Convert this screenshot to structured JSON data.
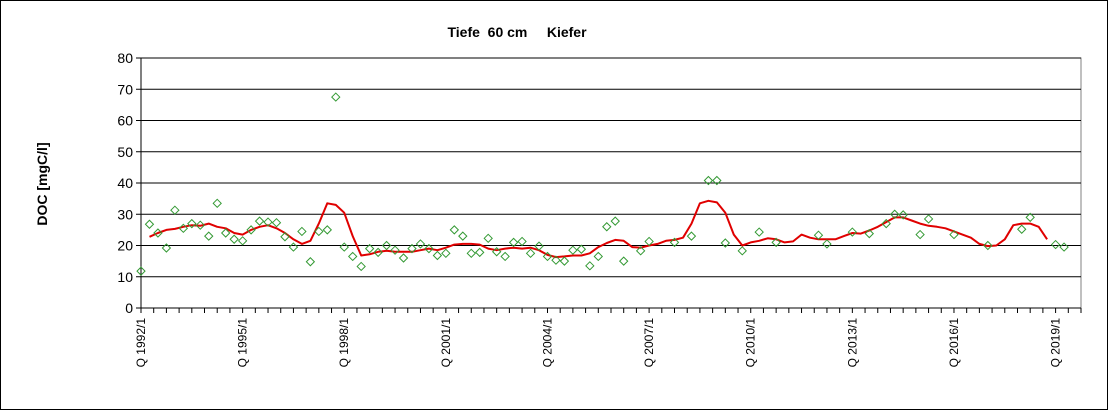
{
  "chart_data": {
    "type": "scatter",
    "title": "Tiefe  60 cm     Kiefer",
    "ylabel": "DOC [mgC/l]",
    "xlabel": "",
    "ylim": [
      0,
      80
    ],
    "yticks": [
      0,
      10,
      20,
      30,
      40,
      50,
      60,
      70,
      80
    ],
    "xlim": [
      1992.0,
      2019.75
    ],
    "xtick_labels": [
      {
        "x": 1992.0,
        "label": "Q 1992/1"
      },
      {
        "x": 1995.0,
        "label": "Q 1995/1"
      },
      {
        "x": 1998.0,
        "label": "Q 1998/1"
      },
      {
        "x": 2001.0,
        "label": "Q 2001/1"
      },
      {
        "x": 2004.0,
        "label": "Q 2004/1"
      },
      {
        "x": 2007.0,
        "label": "Q 2007/1"
      },
      {
        "x": 2010.0,
        "label": "Q 2010/1"
      },
      {
        "x": 2013.0,
        "label": "Q 2013/1"
      },
      {
        "x": 2016.0,
        "label": "Q 2016/1"
      },
      {
        "x": 2019.0,
        "label": "Q 2019/1"
      }
    ],
    "grid": "horizontal",
    "colors": {
      "points": "#339933",
      "line": "#e00000",
      "plot_bg": "#ffffff",
      "grid": "#000000"
    },
    "series": [
      {
        "kind": "scatter",
        "marker": "diamond",
        "points": [
          [
            1992.0,
            11.8
          ],
          [
            1992.25,
            26.8
          ],
          [
            1992.5,
            24.0
          ],
          [
            1992.75,
            19.2
          ],
          [
            1993.0,
            31.3
          ],
          [
            1993.25,
            25.5
          ],
          [
            1993.5,
            27.0
          ],
          [
            1993.75,
            26.5
          ],
          [
            1994.0,
            23.0
          ],
          [
            1994.25,
            33.5
          ],
          [
            1994.5,
            24.0
          ],
          [
            1994.75,
            22.0
          ],
          [
            1995.0,
            21.5
          ],
          [
            1995.25,
            25.0
          ],
          [
            1995.5,
            27.8
          ],
          [
            1995.75,
            27.5
          ],
          [
            1996.0,
            27.3
          ],
          [
            1996.25,
            22.8
          ],
          [
            1996.5,
            19.5
          ],
          [
            1996.75,
            24.5
          ],
          [
            1997.0,
            14.8
          ],
          [
            1997.25,
            24.5
          ],
          [
            1997.5,
            25.0
          ],
          [
            1997.75,
            67.5
          ],
          [
            1998.0,
            19.5
          ],
          [
            1998.25,
            16.5
          ],
          [
            1998.5,
            13.3
          ],
          [
            1998.75,
            19.0
          ],
          [
            1999.0,
            17.8
          ],
          [
            1999.25,
            20.0
          ],
          [
            1999.5,
            18.5
          ],
          [
            1999.75,
            16.0
          ],
          [
            2000.0,
            19.0
          ],
          [
            2000.25,
            20.5
          ],
          [
            2000.5,
            19.0
          ],
          [
            2000.75,
            16.8
          ],
          [
            2001.0,
            17.5
          ],
          [
            2001.25,
            25.0
          ],
          [
            2001.5,
            23.0
          ],
          [
            2001.75,
            17.5
          ],
          [
            2002.0,
            17.8
          ],
          [
            2002.25,
            22.3
          ],
          [
            2002.5,
            18.0
          ],
          [
            2002.75,
            16.5
          ],
          [
            2003.0,
            21.0
          ],
          [
            2003.25,
            21.3
          ],
          [
            2003.5,
            17.5
          ],
          [
            2003.75,
            19.8
          ],
          [
            2004.0,
            16.5
          ],
          [
            2004.25,
            15.3
          ],
          [
            2004.5,
            15.0
          ],
          [
            2004.75,
            18.5
          ],
          [
            2005.0,
            18.8
          ],
          [
            2005.25,
            13.5
          ],
          [
            2005.5,
            16.5
          ],
          [
            2005.75,
            26.0
          ],
          [
            2006.0,
            27.8
          ],
          [
            2006.25,
            15.0
          ],
          [
            2006.75,
            18.3
          ],
          [
            2007.0,
            21.3
          ],
          [
            2007.75,
            21.0
          ],
          [
            2008.25,
            23.0
          ],
          [
            2008.75,
            40.8
          ],
          [
            2009.0,
            40.8
          ],
          [
            2009.25,
            20.8
          ],
          [
            2009.75,
            18.3
          ],
          [
            2010.25,
            24.3
          ],
          [
            2010.75,
            21.0
          ],
          [
            2012.0,
            23.3
          ],
          [
            2012.25,
            20.5
          ],
          [
            2013.0,
            24.3
          ],
          [
            2013.5,
            23.8
          ],
          [
            2014.0,
            27.0
          ],
          [
            2014.25,
            30.0
          ],
          [
            2014.5,
            29.8
          ],
          [
            2015.0,
            23.5
          ],
          [
            2015.25,
            28.5
          ],
          [
            2016.0,
            23.5
          ],
          [
            2017.0,
            20.0
          ],
          [
            2018.0,
            25.2
          ],
          [
            2018.25,
            29.0
          ],
          [
            2019.0,
            20.3
          ],
          [
            2019.25,
            19.5
          ]
        ]
      },
      {
        "kind": "line",
        "points": [
          [
            1992.25,
            22.8
          ],
          [
            1992.5,
            24.0
          ],
          [
            1992.75,
            25.0
          ],
          [
            1993.0,
            25.3
          ],
          [
            1993.25,
            26.0
          ],
          [
            1993.5,
            26.5
          ],
          [
            1993.75,
            26.3
          ],
          [
            1994.0,
            27.0
          ],
          [
            1994.25,
            26.0
          ],
          [
            1994.5,
            25.5
          ],
          [
            1994.75,
            24.0
          ],
          [
            1995.0,
            23.5
          ],
          [
            1995.25,
            25.0
          ],
          [
            1995.5,
            26.0
          ],
          [
            1995.75,
            26.5
          ],
          [
            1996.0,
            25.5
          ],
          [
            1996.25,
            24.0
          ],
          [
            1996.5,
            22.0
          ],
          [
            1996.75,
            20.5
          ],
          [
            1997.0,
            21.5
          ],
          [
            1997.25,
            27.0
          ],
          [
            1997.5,
            33.5
          ],
          [
            1997.75,
            33.0
          ],
          [
            1998.0,
            30.5
          ],
          [
            1998.25,
            23.0
          ],
          [
            1998.5,
            16.8
          ],
          [
            1998.75,
            17.2
          ],
          [
            1999.0,
            18.0
          ],
          [
            1999.25,
            18.3
          ],
          [
            1999.5,
            18.0
          ],
          [
            1999.75,
            18.0
          ],
          [
            2000.0,
            18.0
          ],
          [
            2000.25,
            18.5
          ],
          [
            2000.5,
            19.0
          ],
          [
            2000.75,
            18.5
          ],
          [
            2001.0,
            19.3
          ],
          [
            2001.25,
            20.3
          ],
          [
            2001.5,
            20.5
          ],
          [
            2001.75,
            20.5
          ],
          [
            2002.0,
            20.3
          ],
          [
            2002.25,
            19.0
          ],
          [
            2002.5,
            18.5
          ],
          [
            2002.75,
            19.0
          ],
          [
            2003.0,
            19.3
          ],
          [
            2003.25,
            19.0
          ],
          [
            2003.5,
            19.3
          ],
          [
            2003.75,
            18.5
          ],
          [
            2004.0,
            17.0
          ],
          [
            2004.25,
            16.3
          ],
          [
            2004.5,
            16.5
          ],
          [
            2004.75,
            16.8
          ],
          [
            2005.0,
            16.8
          ],
          [
            2005.25,
            17.5
          ],
          [
            2005.5,
            19.5
          ],
          [
            2005.75,
            20.8
          ],
          [
            2006.0,
            21.8
          ],
          [
            2006.25,
            21.5
          ],
          [
            2006.5,
            19.5
          ],
          [
            2006.75,
            19.3
          ],
          [
            2007.0,
            20.0
          ],
          [
            2007.25,
            20.5
          ],
          [
            2007.5,
            21.5
          ],
          [
            2007.75,
            21.8
          ],
          [
            2008.0,
            22.5
          ],
          [
            2008.25,
            27.0
          ],
          [
            2008.5,
            33.5
          ],
          [
            2008.75,
            34.3
          ],
          [
            2009.0,
            33.8
          ],
          [
            2009.25,
            30.5
          ],
          [
            2009.5,
            23.5
          ],
          [
            2009.75,
            20.0
          ],
          [
            2010.0,
            21.0
          ],
          [
            2010.25,
            21.5
          ],
          [
            2010.5,
            22.3
          ],
          [
            2010.75,
            22.0
          ],
          [
            2011.0,
            21.0
          ],
          [
            2011.25,
            21.3
          ],
          [
            2011.5,
            23.5
          ],
          [
            2011.75,
            22.5
          ],
          [
            2012.0,
            22.0
          ],
          [
            2012.25,
            22.0
          ],
          [
            2012.5,
            22.0
          ],
          [
            2012.75,
            23.0
          ],
          [
            2013.0,
            24.0
          ],
          [
            2013.25,
            23.8
          ],
          [
            2013.5,
            24.8
          ],
          [
            2013.75,
            26.0
          ],
          [
            2014.0,
            27.5
          ],
          [
            2014.25,
            29.0
          ],
          [
            2014.5,
            29.0
          ],
          [
            2014.75,
            28.0
          ],
          [
            2015.0,
            27.0
          ],
          [
            2015.25,
            26.3
          ],
          [
            2015.5,
            26.0
          ],
          [
            2015.75,
            25.5
          ],
          [
            2016.0,
            24.5
          ],
          [
            2016.25,
            23.5
          ],
          [
            2016.5,
            22.5
          ],
          [
            2016.75,
            20.5
          ],
          [
            2017.0,
            19.8
          ],
          [
            2017.25,
            20.0
          ],
          [
            2017.5,
            22.0
          ],
          [
            2017.75,
            26.5
          ],
          [
            2018.0,
            27.0
          ],
          [
            2018.25,
            27.0
          ],
          [
            2018.5,
            26.0
          ],
          [
            2018.75,
            22.0
          ]
        ]
      }
    ]
  }
}
